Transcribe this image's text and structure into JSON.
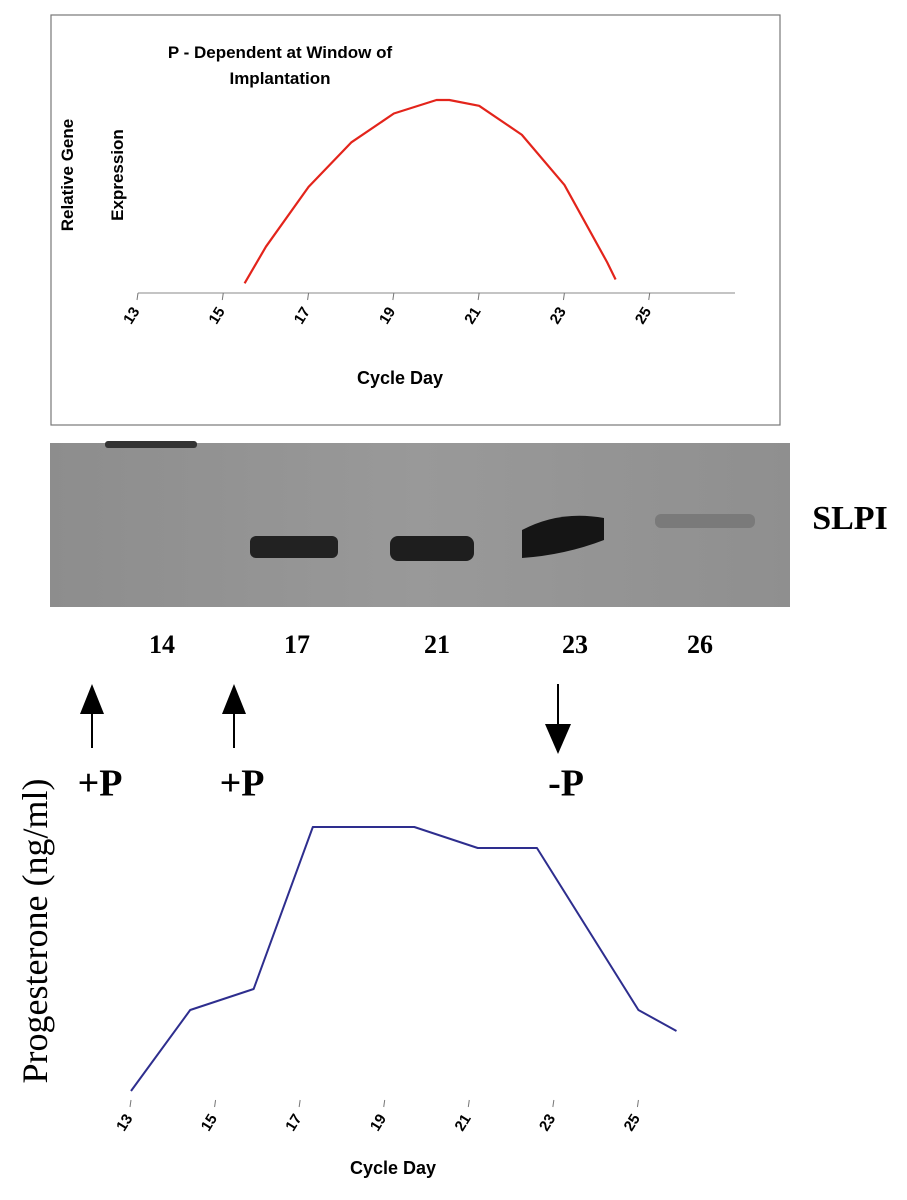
{
  "chart_data": [
    {
      "type": "line",
      "title": "P - Dependent at Window of Implantation",
      "ylabel": "Relative Gene Expression",
      "xlabel": "Cycle Day",
      "x": [
        15.5,
        16,
        17,
        18,
        19,
        20,
        20.3,
        21,
        22,
        23,
        24,
        24.2
      ],
      "series": [
        {
          "color": "#e3241b",
          "values": [
            5,
            24,
            55,
            78,
            93,
            100,
            100,
            97,
            82,
            56,
            16,
            7
          ]
        }
      ],
      "xlim": [
        13,
        27
      ],
      "ylim": [
        0,
        100
      ],
      "xticks": [
        13,
        15,
        17,
        19,
        21,
        23,
        25
      ]
    },
    {
      "type": "line",
      "ylabel": "Progesterone (ng/ml)",
      "xlabel": "Cycle Day",
      "x": [
        13,
        14.4,
        15.9,
        17.3,
        19.7,
        21.2,
        22.6,
        25,
        25.9
      ],
      "series": [
        {
          "color": "#2e2e8e",
          "values": [
            3,
            30,
            37,
            91,
            91,
            84,
            84,
            30,
            23
          ]
        }
      ],
      "xlim": [
        13,
        27
      ],
      "ylim": [
        0,
        100
      ],
      "xticks": [
        13,
        15,
        17,
        19,
        21,
        23,
        25
      ]
    }
  ],
  "blot": {
    "label": "SLPI",
    "lanes": [
      "14",
      "17",
      "21",
      "23",
      "26"
    ]
  },
  "annotations": [
    {
      "text": "+P",
      "direction": "up"
    },
    {
      "text": "+P",
      "direction": "up"
    },
    {
      "text": "-P",
      "direction": "down"
    }
  ]
}
